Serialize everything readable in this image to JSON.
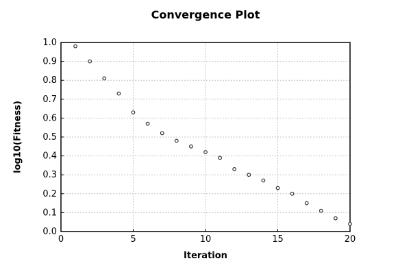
{
  "chart_data": {
    "type": "scatter",
    "title": "Convergence Plot",
    "xlabel": "Iteration",
    "ylabel": "log10(Fitness)",
    "xlim": [
      0,
      20
    ],
    "ylim": [
      0.0,
      1.0
    ],
    "xticks": [
      "0",
      "5",
      "10",
      "15",
      "20"
    ],
    "yticks": [
      "0.0",
      "0.1",
      "0.2",
      "0.3",
      "0.4",
      "0.5",
      "0.6",
      "0.7",
      "0.8",
      "0.9",
      "1.0"
    ],
    "grid": true,
    "legend": "none",
    "marker": "open-circle",
    "colors": {
      "marker": "#2f2f2f",
      "marker_fill": "#ffffff",
      "grid": "#c4c4c4",
      "axis": "#000000",
      "background": "#ffffff",
      "text": "#000000"
    },
    "series": [
      {
        "name": "log10 fitness",
        "x": [
          1,
          2,
          3,
          4,
          5,
          6,
          7,
          8,
          9,
          10,
          11,
          12,
          13,
          14,
          15,
          16,
          17,
          18,
          19,
          20
        ],
        "y": [
          0.98,
          0.9,
          0.81,
          0.73,
          0.63,
          0.57,
          0.52,
          0.48,
          0.45,
          0.42,
          0.39,
          0.33,
          0.3,
          0.27,
          0.23,
          0.2,
          0.15,
          0.11,
          0.07,
          0.04
        ]
      }
    ]
  }
}
